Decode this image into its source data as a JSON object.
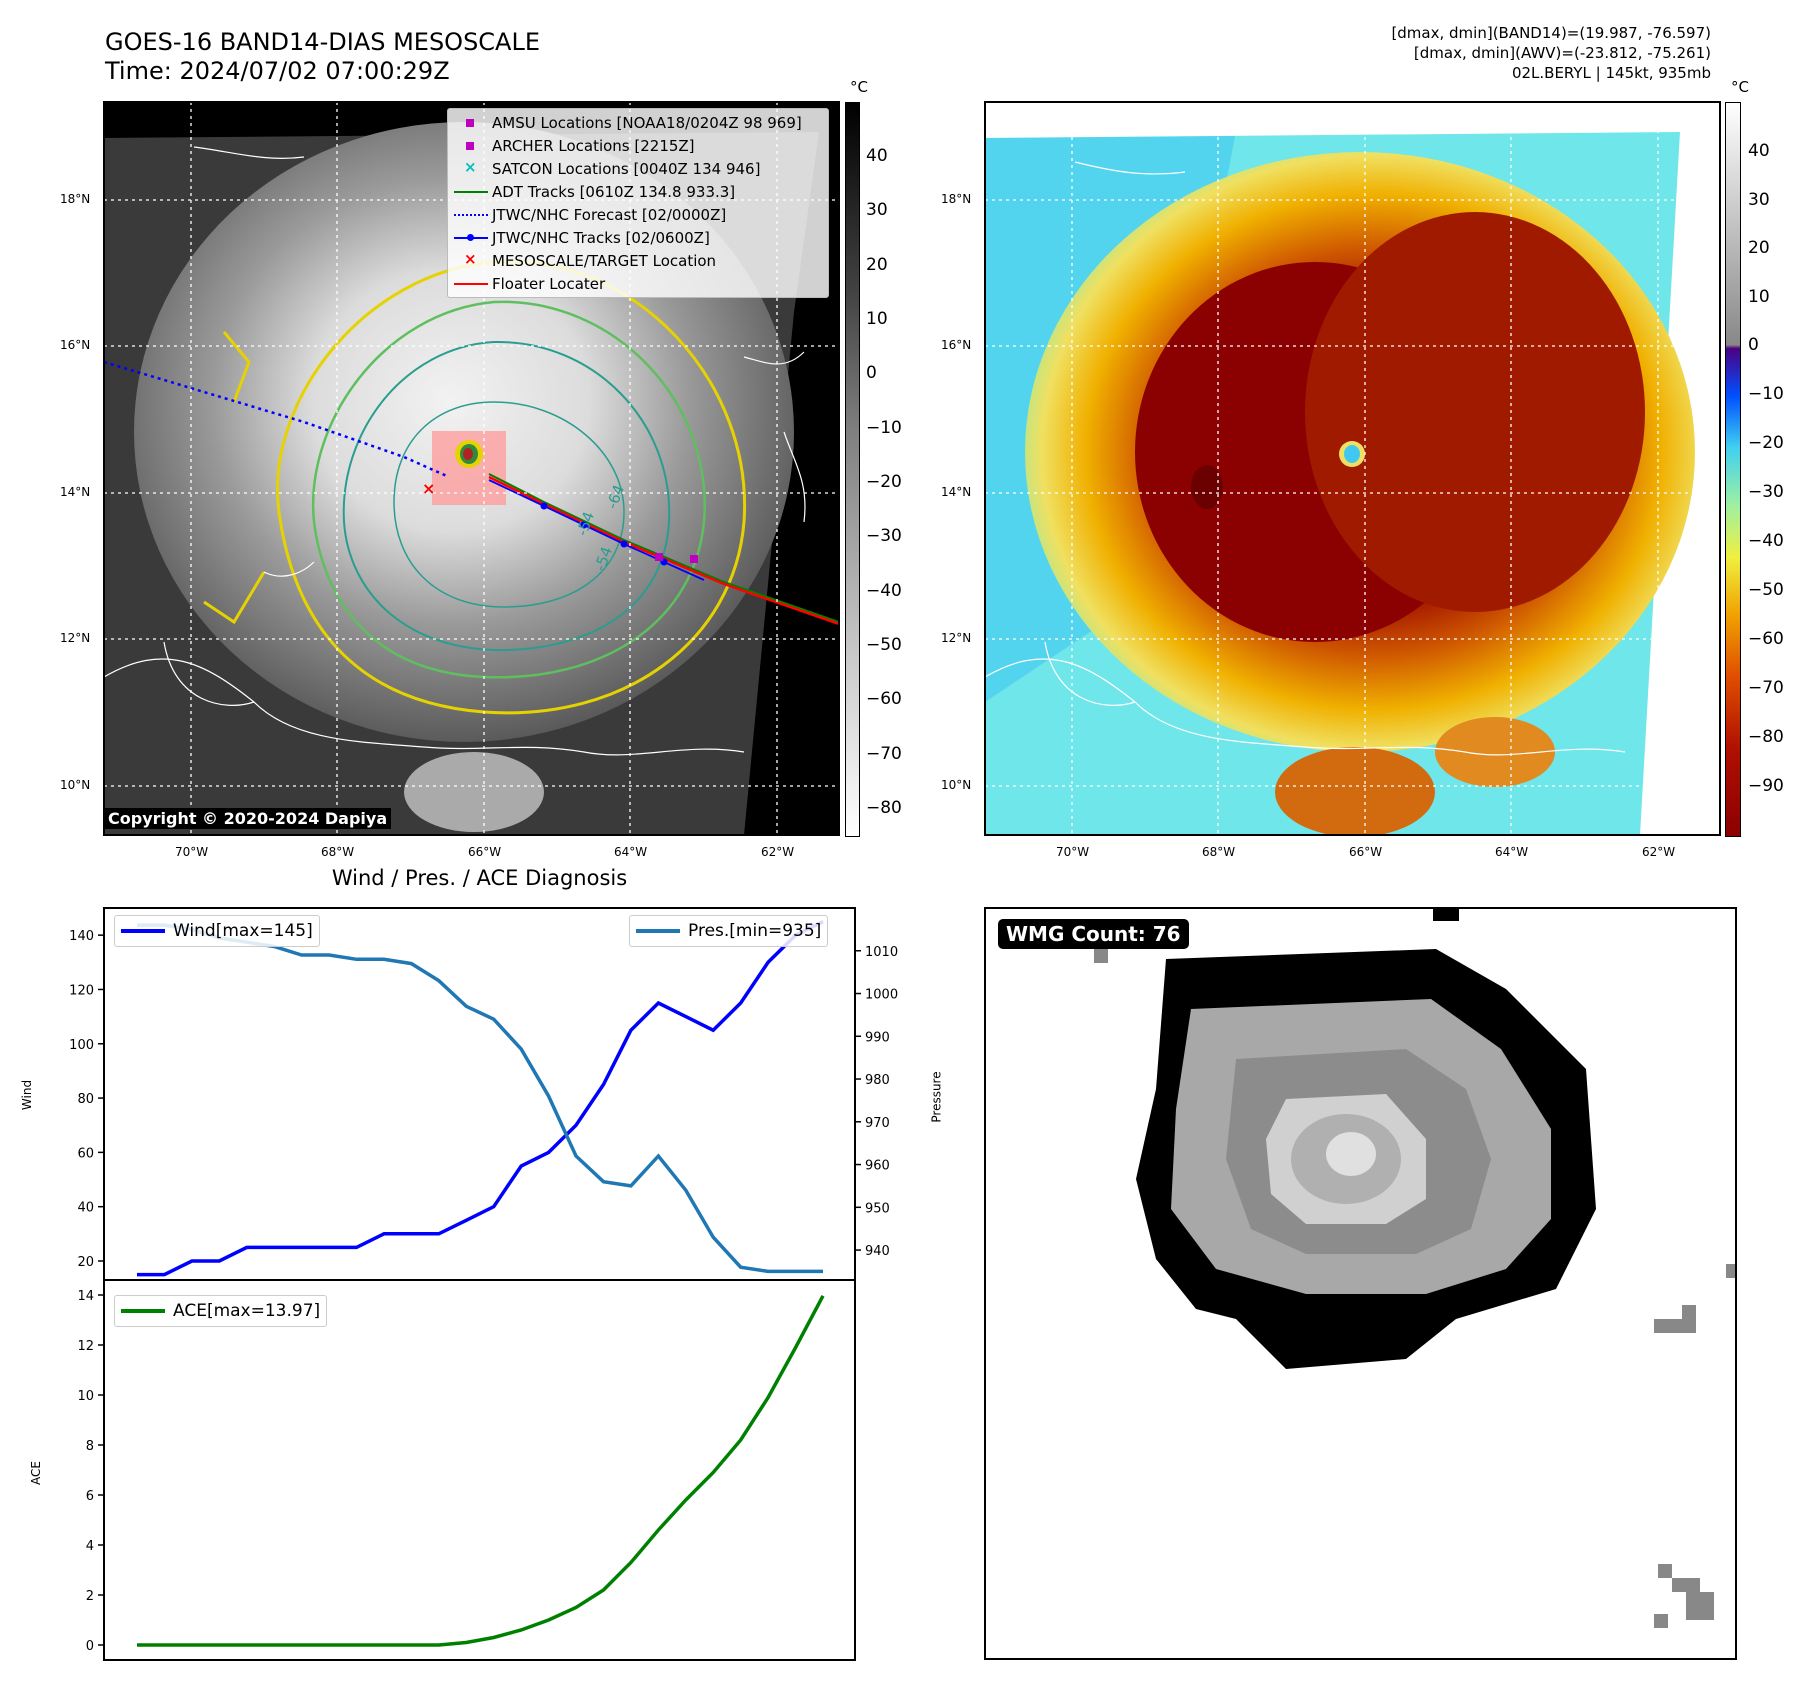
{
  "header": {
    "title_line1": "GOES-16 BAND14-DIAS MESOSCALE",
    "title_line2": "Time: 2024/07/02 07:00:29Z",
    "info_line1": "[dmax, dmin](BAND14)=(19.987, -76.597)",
    "info_line2": "[dmax, dmin](AWV)=(-23.812, -75.261)",
    "info_line3": "02L.BERYL | 145kt, 935mb"
  },
  "unit_label": "°C",
  "copyright": "Copyright © 2020-2024 Dapiya",
  "map": {
    "lat_labels": [
      "18°N",
      "16°N",
      "14°N",
      "12°N",
      "10°N"
    ],
    "lon_labels": [
      "70°W",
      "68°W",
      "66°W",
      "64°W",
      "62°W"
    ],
    "contour_labels": [
      "-54",
      "-64",
      "-54"
    ]
  },
  "legend": {
    "items": [
      {
        "label": "AMSU Locations [NOAA18/0204Z 98 969]",
        "symbol": "square",
        "color": "#c000c0"
      },
      {
        "label": "ARCHER Locations [2215Z]",
        "symbol": "square",
        "color": "#c000c0"
      },
      {
        "label": "SATCON Locations [0040Z 134 946]",
        "symbol": "x",
        "color": "#00bfbf"
      },
      {
        "label": "ADT Tracks [0610Z 134.8 933.3]",
        "symbol": "line",
        "color": "#008000"
      },
      {
        "label": "JTWC/NHC Forecast [02/0000Z]",
        "symbol": "dotted",
        "color": "#0000ff"
      },
      {
        "label": "JTWC/NHC Tracks [02/0600Z]",
        "symbol": "line-dot",
        "color": "#0000ff"
      },
      {
        "label": "MESOSCALE/TARGET Location",
        "symbol": "x",
        "color": "#ff0000"
      },
      {
        "label": "Floater Locater",
        "symbol": "line",
        "color": "#ff0000"
      }
    ]
  },
  "colorbar_gray": {
    "ticks": [
      "40",
      "30",
      "20",
      "10",
      "0",
      "−10",
      "−20",
      "−30",
      "−40",
      "−50",
      "−60",
      "−70",
      "−80"
    ]
  },
  "colorbar_color": {
    "ticks": [
      "40",
      "30",
      "20",
      "10",
      "0",
      "−10",
      "−20",
      "−30",
      "−40",
      "−50",
      "−60",
      "−70",
      "−80",
      "−90"
    ]
  },
  "chart_data": [
    {
      "type": "line",
      "title": "Wind / Pres. / ACE Diagnosis",
      "x": [
        0,
        1,
        2,
        3,
        4,
        5,
        6,
        7,
        8,
        9,
        10,
        11,
        12,
        13,
        14,
        15,
        16,
        17,
        18,
        19,
        20,
        21,
        22,
        23,
        24,
        25
      ],
      "series": [
        {
          "name": "Wind[max=145]",
          "axis": "left",
          "color": "#0000ff",
          "values": [
            15,
            15,
            20,
            20,
            25,
            25,
            25,
            25,
            25,
            30,
            30,
            30,
            35,
            40,
            55,
            60,
            70,
            85,
            105,
            115,
            110,
            105,
            115,
            130,
            140,
            145
          ]
        },
        {
          "name": "Pres.[min=935]",
          "axis": "right",
          "color": "#1f77b4",
          "values": [
            1016,
            1016,
            1015,
            1013,
            1012,
            1011,
            1009,
            1009,
            1008,
            1008,
            1007,
            1003,
            997,
            994,
            987,
            976,
            962,
            956,
            955,
            962,
            954,
            943,
            936,
            935,
            935,
            935
          ]
        }
      ],
      "ylabel": "Wind",
      "y2label": "Pressure",
      "ylim": [
        13,
        150
      ],
      "y2lim": [
        933,
        1020
      ],
      "yticks": [
        "140",
        "120",
        "100",
        "80",
        "60",
        "40",
        "20"
      ],
      "y2ticks": [
        "1010",
        "1000",
        "990",
        "980",
        "970",
        "960",
        "950",
        "940"
      ]
    },
    {
      "type": "line",
      "x": [
        0,
        1,
        2,
        3,
        4,
        5,
        6,
        7,
        8,
        9,
        10,
        11,
        12,
        13,
        14,
        15,
        16,
        17,
        18,
        19,
        20,
        21,
        22,
        23,
        24,
        25
      ],
      "series": [
        {
          "name": "ACE[max=13.97]",
          "color": "#008000",
          "values": [
            0,
            0,
            0,
            0,
            0,
            0,
            0,
            0,
            0,
            0,
            0,
            0,
            0.1,
            0.3,
            0.6,
            1.0,
            1.5,
            2.2,
            3.3,
            4.6,
            5.8,
            6.9,
            8.2,
            9.9,
            11.9,
            13.97
          ]
        }
      ],
      "ylabel": "ACE",
      "ylim": [
        -0.6,
        14.6
      ],
      "yticks": [
        "14",
        "12",
        "10",
        "8",
        "6",
        "4",
        "2",
        "0"
      ]
    }
  ],
  "wmg": {
    "label": "WMG Count: 76"
  }
}
